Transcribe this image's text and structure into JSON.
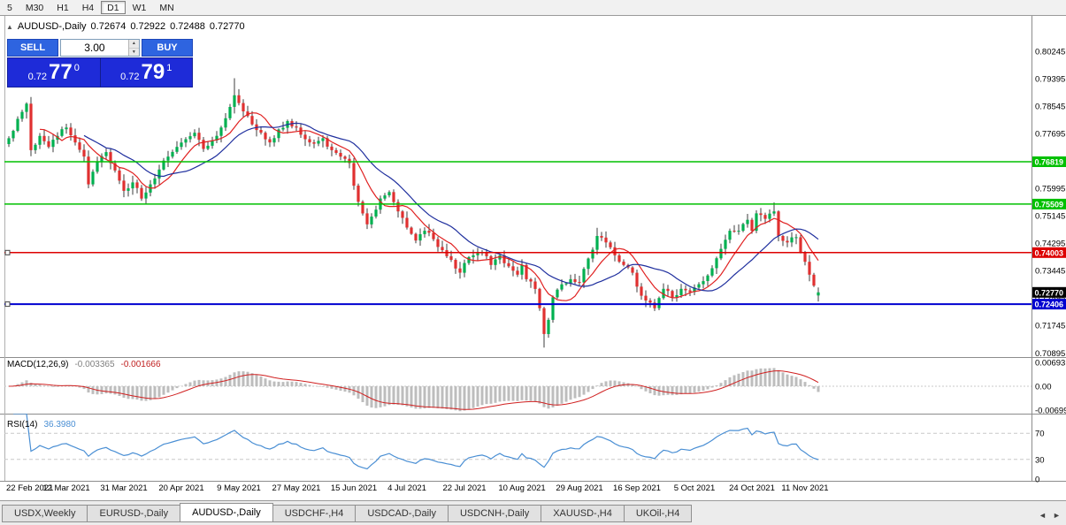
{
  "toolbar": {
    "timeframes": [
      {
        "label": "5",
        "active": false
      },
      {
        "label": "M30",
        "active": false
      },
      {
        "label": "H1",
        "active": false
      },
      {
        "label": "H4",
        "active": false
      },
      {
        "label": "D1",
        "active": true
      },
      {
        "label": "W1",
        "active": false
      },
      {
        "label": "MN",
        "active": false
      }
    ]
  },
  "icons": {
    "collapse_arrow": "▲",
    "spin_up": "▲",
    "spin_down": "▼",
    "tab_prev": "◄",
    "tab_next": "►"
  },
  "chart": {
    "symbol": "AUDUSD-,Daily",
    "ohlc": {
      "open": "0.72674",
      "high": "0.72922",
      "low": "0.72488",
      "close": "0.72770"
    },
    "trade_panel": {
      "sell_label": "SELL",
      "buy_label": "BUY",
      "volume": "3.00",
      "sell_price": {
        "base": "0.72",
        "big": "77",
        "sup": "0"
      },
      "buy_price": {
        "base": "0.72",
        "big": "79",
        "sup": "1"
      }
    },
    "macd_label": {
      "name": "MACD(12,26,9)",
      "main": "-0.003365",
      "signal": "-0.001666"
    },
    "rsi_label": {
      "name": "RSI(14)",
      "value": "36.3980"
    }
  },
  "chart_data": {
    "type": "candlestick",
    "symbol": "AUDUSD",
    "period": "Daily",
    "last_candle": {
      "open": 0.72674,
      "high": 0.72922,
      "low": 0.72488,
      "close": 0.7277
    },
    "num_candles": 184,
    "close_anchors": [
      [
        0,
        0.7755
      ],
      [
        2,
        0.7815
      ],
      [
        4,
        0.7862
      ],
      [
        5,
        0.7718
      ],
      [
        7,
        0.7762
      ],
      [
        9,
        0.7728
      ],
      [
        11,
        0.7762
      ],
      [
        13,
        0.7788
      ],
      [
        15,
        0.7742
      ],
      [
        17,
        0.7698
      ],
      [
        18,
        0.7612
      ],
      [
        20,
        0.7682
      ],
      [
        22,
        0.7712
      ],
      [
        24,
        0.7655
      ],
      [
        26,
        0.7592
      ],
      [
        28,
        0.7618
      ],
      [
        30,
        0.7568
      ],
      [
        32,
        0.7612
      ],
      [
        34,
        0.7658
      ],
      [
        36,
        0.7698
      ],
      [
        38,
        0.7728
      ],
      [
        40,
        0.7752
      ],
      [
        42,
        0.7772
      ],
      [
        44,
        0.7722
      ],
      [
        46,
        0.7748
      ],
      [
        48,
        0.7788
      ],
      [
        50,
        0.7852
      ],
      [
        51,
        0.7888
      ],
      [
        53,
        0.7838
      ],
      [
        55,
        0.7798
      ],
      [
        57,
        0.7772
      ],
      [
        59,
        0.7742
      ],
      [
        61,
        0.7782
      ],
      [
        63,
        0.7808
      ],
      [
        65,
        0.7788
      ],
      [
        67,
        0.7752
      ],
      [
        69,
        0.7738
      ],
      [
        71,
        0.7755
      ],
      [
        73,
        0.7718
      ],
      [
        75,
        0.7698
      ],
      [
        77,
        0.7678
      ],
      [
        78,
        0.7608
      ],
      [
        79,
        0.7558
      ],
      [
        81,
        0.7488
      ],
      [
        82,
        0.7512
      ],
      [
        84,
        0.7568
      ],
      [
        86,
        0.7588
      ],
      [
        88,
        0.7528
      ],
      [
        90,
        0.7478
      ],
      [
        92,
        0.7438
      ],
      [
        94,
        0.7468
      ],
      [
        96,
        0.7442
      ],
      [
        98,
        0.7408
      ],
      [
        100,
        0.7378
      ],
      [
        102,
        0.7338
      ],
      [
        103,
        0.7368
      ],
      [
        105,
        0.7392
      ],
      [
        107,
        0.7402
      ],
      [
        109,
        0.7362
      ],
      [
        111,
        0.7392
      ],
      [
        113,
        0.7358
      ],
      [
        115,
        0.7332
      ],
      [
        116,
        0.7362
      ],
      [
        117,
        0.7318
      ],
      [
        119,
        0.7288
      ],
      [
        120,
        0.7228
      ],
      [
        121,
        0.7148
      ],
      [
        122,
        0.7192
      ],
      [
        123,
        0.7262
      ],
      [
        125,
        0.7302
      ],
      [
        127,
        0.7318
      ],
      [
        129,
        0.7308
      ],
      [
        131,
        0.7382
      ],
      [
        133,
        0.7452
      ],
      [
        135,
        0.7432
      ],
      [
        137,
        0.7392
      ],
      [
        139,
        0.7362
      ],
      [
        141,
        0.7338
      ],
      [
        142,
        0.7295
      ],
      [
        144,
        0.7252
      ],
      [
        146,
        0.7228
      ],
      [
        148,
        0.7288
      ],
      [
        150,
        0.7262
      ],
      [
        152,
        0.7288
      ],
      [
        154,
        0.7278
      ],
      [
        155,
        0.7292
      ],
      [
        157,
        0.7312
      ],
      [
        159,
        0.7352
      ],
      [
        161,
        0.7412
      ],
      [
        163,
        0.7468
      ],
      [
        165,
        0.7468
      ],
      [
        167,
        0.7502
      ],
      [
        168,
        0.7468
      ],
      [
        169,
        0.7522
      ],
      [
        171,
        0.7505
      ],
      [
        173,
        0.7528
      ],
      [
        174,
        0.7452
      ],
      [
        176,
        0.7432
      ],
      [
        178,
        0.7448
      ],
      [
        179,
        0.7402
      ],
      [
        180,
        0.7372
      ],
      [
        181,
        0.7332
      ],
      [
        182,
        0.7298
      ],
      [
        183,
        0.7277
      ]
    ],
    "wick_spikes": [
      {
        "i": 51,
        "high": 0.7941
      },
      {
        "i": 121,
        "low": 0.7106
      },
      {
        "i": 133,
        "high": 0.7477
      },
      {
        "i": 173,
        "high": 0.7556
      }
    ],
    "x_labels": [
      [
        0,
        "22 Feb 2021"
      ],
      [
        13,
        "12 Mar 2021"
      ],
      [
        26,
        "31 Mar 2021"
      ],
      [
        39,
        "20 Apr 2021"
      ],
      [
        52,
        "9 May 2021"
      ],
      [
        65,
        "27 May 2021"
      ],
      [
        78,
        "15 Jun 2021"
      ],
      [
        90,
        "4 Jul 2021"
      ],
      [
        103,
        "22 Jul 2021"
      ],
      [
        116,
        "10 Aug 2021"
      ],
      [
        129,
        "29 Aug 2021"
      ],
      [
        142,
        "16 Sep 2021"
      ],
      [
        155,
        "5 Oct 2021"
      ],
      [
        168,
        "24 Oct 2021"
      ],
      [
        180,
        "11 Nov 2021"
      ]
    ],
    "price_axis": [
      "0.80245",
      "0.79395",
      "0.78545",
      "0.77695",
      "0.76845",
      "0.75995",
      "0.75145",
      "0.74295",
      "0.73445",
      "0.72595",
      "0.71745",
      "0.70895"
    ],
    "levels": [
      {
        "label": "0.76819",
        "value": 0.76819,
        "color": "#00C000",
        "width": 1.5,
        "handle": false
      },
      {
        "label": "0.75509",
        "value": 0.75509,
        "color": "#00C000",
        "width": 1.5,
        "handle": false
      },
      {
        "label": "0.74003",
        "value": 0.74003,
        "color": "#DD0000",
        "width": 1.5,
        "handle": true
      },
      {
        "label": "0.72406",
        "value": 0.72406,
        "color": "#0000D0",
        "width": 2,
        "handle": true
      }
    ],
    "current_price_tag": {
      "label": "0.72770",
      "value": 0.7277,
      "bg": "#000000"
    },
    "macd": {
      "params": "12,26,9",
      "main": -0.003365,
      "signal": -0.001666,
      "axis": [
        "0.00693",
        "0.00",
        "-0.00699"
      ],
      "hist_color": "#BDBDBD",
      "signal_color": "#D02020"
    },
    "rsi": {
      "period": 14,
      "value": 36.398,
      "axis": [
        "70",
        "30",
        "0"
      ],
      "levels": [
        70,
        30
      ],
      "color": "#4A8FD4"
    },
    "ma": {
      "fast_period": 8,
      "slow_period": 18,
      "fast_color": "#E02020",
      "slow_color": "#1F2F9E"
    },
    "candle_colors": {
      "up": "#00B050",
      "down": "#E03030",
      "wick": "#3C3C3C"
    }
  },
  "tabs": {
    "items": [
      {
        "label": "USDX,Weekly",
        "active": false
      },
      {
        "label": "EURUSD-,Daily",
        "active": false
      },
      {
        "label": "AUDUSD-,Daily",
        "active": true
      },
      {
        "label": "USDCHF-,H4",
        "active": false
      },
      {
        "label": "USDCAD-,Daily",
        "active": false
      },
      {
        "label": "USDCNH-,Daily",
        "active": false
      },
      {
        "label": "XAUUSD-,H4",
        "active": false
      },
      {
        "label": "UKOil-,H4",
        "active": false
      }
    ]
  }
}
